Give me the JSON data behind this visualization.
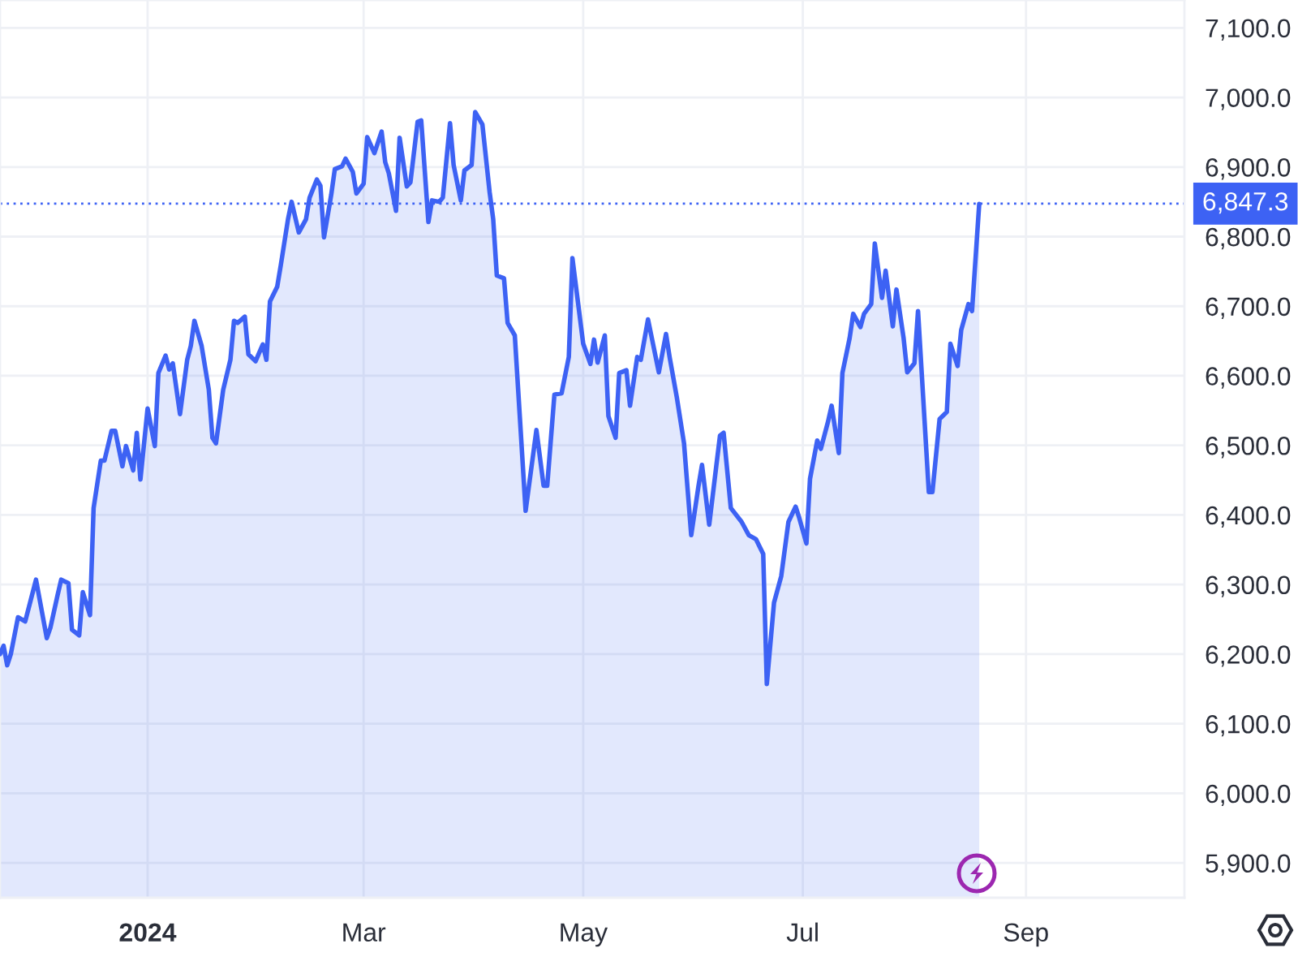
{
  "chart_data": {
    "type": "area",
    "x": [
      "2023-11-21",
      "2023-11-22",
      "2023-11-23",
      "2023-11-24",
      "2023-11-26",
      "2023-11-28",
      "2023-12-01",
      "2023-12-04",
      "2023-12-05",
      "2023-12-07",
      "2023-12-08",
      "2023-12-10",
      "2023-12-11",
      "2023-12-13",
      "2023-12-14",
      "2023-12-16",
      "2023-12-17",
      "2023-12-19",
      "2023-12-20",
      "2023-12-22",
      "2023-12-23",
      "2023-12-25",
      "2023-12-26",
      "2023-12-28",
      "2023-12-29",
      "2023-12-30",
      "2024-01-01",
      "2024-01-03",
      "2024-01-04",
      "2024-01-06",
      "2024-01-07",
      "2024-01-08",
      "2024-01-10",
      "2024-01-12",
      "2024-01-13",
      "2024-01-14",
      "2024-01-16",
      "2024-01-18",
      "2024-01-19",
      "2024-01-20",
      "2024-01-22",
      "2024-01-24",
      "2024-01-25",
      "2024-01-26",
      "2024-01-28",
      "2024-01-29",
      "2024-01-31",
      "2024-02-02",
      "2024-02-03",
      "2024-02-04",
      "2024-02-06",
      "2024-02-07",
      "2024-02-09",
      "2024-02-10",
      "2024-02-12",
      "2024-02-14",
      "2024-02-15",
      "2024-02-17",
      "2024-02-18",
      "2024-02-19",
      "2024-02-21",
      "2024-02-22",
      "2024-02-24",
      "2024-02-25",
      "2024-02-27",
      "2024-02-28",
      "2024-03-01",
      "2024-03-02",
      "2024-03-04",
      "2024-03-06",
      "2024-03-07",
      "2024-03-08",
      "2024-03-10",
      "2024-03-11",
      "2024-03-13",
      "2024-03-14",
      "2024-03-16",
      "2024-03-17",
      "2024-03-19",
      "2024-03-20",
      "2024-03-22",
      "2024-03-23",
      "2024-03-25",
      "2024-03-26",
      "2024-03-28",
      "2024-03-29",
      "2024-03-31",
      "2024-04-01",
      "2024-04-03",
      "2024-04-05",
      "2024-04-06",
      "2024-04-07",
      "2024-04-09",
      "2024-04-10",
      "2024-04-12",
      "2024-04-15",
      "2024-04-18",
      "2024-04-20",
      "2024-04-21",
      "2024-04-23",
      "2024-04-25",
      "2024-04-27",
      "2024-04-28",
      "2024-05-01",
      "2024-05-03",
      "2024-05-04",
      "2024-05-05",
      "2024-05-07",
      "2024-05-08",
      "2024-05-10",
      "2024-05-11",
      "2024-05-13",
      "2024-05-14",
      "2024-05-16",
      "2024-05-17",
      "2024-05-19",
      "2024-05-22",
      "2024-05-24",
      "2024-05-25",
      "2024-05-27",
      "2024-05-29",
      "2024-05-31",
      "2024-06-02",
      "2024-06-03",
      "2024-06-05",
      "2024-06-07",
      "2024-06-08",
      "2024-06-09",
      "2024-06-11",
      "2024-06-14",
      "2024-06-16",
      "2024-06-18",
      "2024-06-20",
      "2024-06-21",
      "2024-06-23",
      "2024-06-25",
      "2024-06-27",
      "2024-06-29",
      "2024-06-30",
      "2024-07-02",
      "2024-07-03",
      "2024-07-05",
      "2024-07-06",
      "2024-07-08",
      "2024-07-09",
      "2024-07-11",
      "2024-07-12",
      "2024-07-14",
      "2024-07-15",
      "2024-07-17",
      "2024-07-18",
      "2024-07-20",
      "2024-07-21",
      "2024-07-23",
      "2024-07-24",
      "2024-07-26",
      "2024-07-27",
      "2024-07-29",
      "2024-07-30",
      "2024-08-01",
      "2024-08-02",
      "2024-08-05",
      "2024-08-06",
      "2024-08-08",
      "2024-08-10",
      "2024-08-11",
      "2024-08-13",
      "2024-08-14",
      "2024-08-16",
      "2024-08-17",
      "2024-08-19"
    ],
    "series": [
      {
        "color": "#3d62f4",
        "values": [
          6200,
          6212,
          6184,
          6200,
          6253,
          6247,
          6307,
          6223,
          6238,
          6285,
          6307,
          6302,
          6235,
          6227,
          6289,
          6256,
          6410,
          6478,
          6478,
          6521,
          6521,
          6470,
          6499,
          6464,
          6518,
          6451,
          6553,
          6499,
          6604,
          6629,
          6609,
          6618,
          6545,
          6623,
          6643,
          6679,
          6643,
          6580,
          6511,
          6503,
          6580,
          6623,
          6679,
          6676,
          6685,
          6631,
          6621,
          6645,
          6623,
          6707,
          6728,
          6759,
          6825,
          6850,
          6806,
          6825,
          6856,
          6882,
          6873,
          6799,
          6860,
          6897,
          6901,
          6912,
          6893,
          6862,
          6876,
          6943,
          6920,
          6951,
          6907,
          6891,
          6837,
          6942,
          6872,
          6878,
          6965,
          6967,
          6821,
          6852,
          6850,
          6856,
          6963,
          6903,
          6852,
          6895,
          6903,
          6979,
          6961,
          6864,
          6825,
          6744,
          6740,
          6676,
          6658,
          6406,
          6522,
          6442,
          6442,
          6573,
          6575,
          6627,
          6769,
          6646,
          6617,
          6652,
          6619,
          6658,
          6542,
          6511,
          6604,
          6608,
          6557,
          6627,
          6623,
          6681,
          6605,
          6660,
          6627,
          6569,
          6503,
          6371,
          6441,
          6472,
          6386,
          6472,
          6514,
          6518,
          6410,
          6390,
          6371,
          6365,
          6344,
          6157,
          6274,
          6312,
          6390,
          6412,
          6396,
          6359,
          6452,
          6507,
          6495,
          6534,
          6557,
          6489,
          6604,
          6654,
          6689,
          6670,
          6689,
          6703,
          6790,
          6712,
          6751,
          6671,
          6724,
          6654,
          6605,
          6618,
          6693,
          6433,
          6433,
          6538,
          6548,
          6646,
          6614,
          6666,
          6703,
          6693,
          6847
        ]
      }
    ],
    "xlim": [
      "2023-11-21",
      "2024-10-15"
    ],
    "xticks": [
      {
        "value": "2024-01-01",
        "label": "2024"
      },
      {
        "value": "2024-03-01",
        "label": "Mar"
      },
      {
        "value": "2024-05-01",
        "label": "May"
      },
      {
        "value": "2024-07-01",
        "label": "Jul"
      },
      {
        "value": "2024-09-01",
        "label": "Sep"
      }
    ],
    "ylim": [
      5850,
      7140
    ],
    "yticks": [
      {
        "value": 5900,
        "label": "5,900.0"
      },
      {
        "value": 6000,
        "label": "6,000.0"
      },
      {
        "value": 6100,
        "label": "6,100.0"
      },
      {
        "value": 6200,
        "label": "6,200.0"
      },
      {
        "value": 6300,
        "label": "6,300.0"
      },
      {
        "value": 6400,
        "label": "6,400.0"
      },
      {
        "value": 6500,
        "label": "6,500.0"
      },
      {
        "value": 6600,
        "label": "6,600.0"
      },
      {
        "value": 6700,
        "label": "6,700.0"
      },
      {
        "value": 6800,
        "label": "6,800.0"
      },
      {
        "value": 6900,
        "label": "6,900.0"
      },
      {
        "value": 7000,
        "label": "7,000.0"
      },
      {
        "value": 7100,
        "label": "7,100.0"
      }
    ],
    "grid": true,
    "ref_lines": [
      {
        "axis": "y",
        "value": 6847.3,
        "label": "6,847.3",
        "color": "#3d62f4",
        "line_style": "dotted"
      }
    ]
  }
}
